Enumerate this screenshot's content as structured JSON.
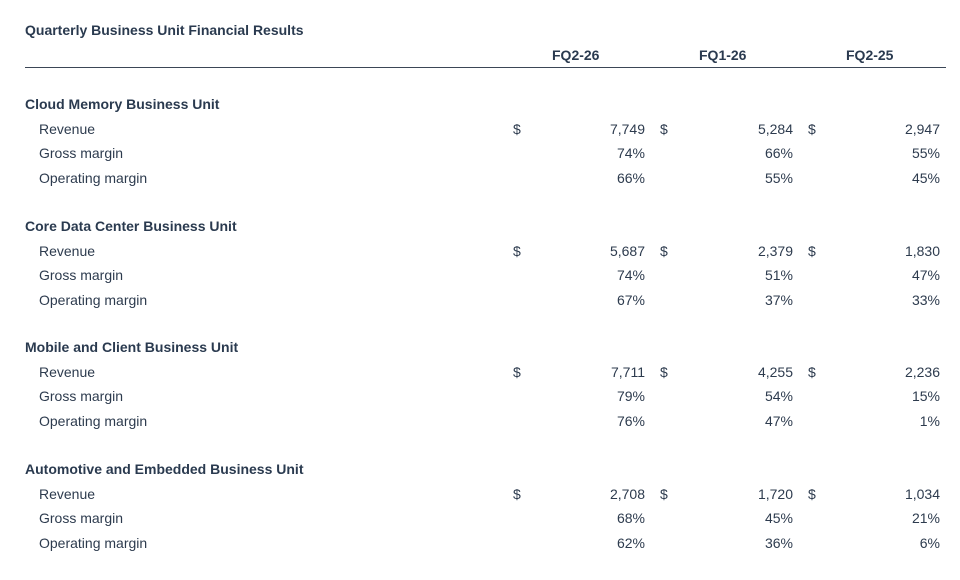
{
  "title": "Quarterly Business Unit Financial Results",
  "columns": [
    "FQ2-26",
    "FQ1-26",
    "FQ2-25"
  ],
  "sections": [
    {
      "name": "Cloud Memory Business Unit",
      "rows": [
        {
          "label": "Revenue",
          "currency": "$",
          "values": [
            "7,749",
            "5,284",
            "2,947"
          ]
        },
        {
          "label": "Gross margin",
          "values": [
            "74%",
            "66%",
            "55%"
          ]
        },
        {
          "label": "Operating margin",
          "values": [
            "66%",
            "55%",
            "45%"
          ]
        }
      ]
    },
    {
      "name": "Core Data Center Business Unit",
      "rows": [
        {
          "label": "Revenue",
          "currency": "$",
          "values": [
            "5,687",
            "2,379",
            "1,830"
          ]
        },
        {
          "label": "Gross margin",
          "values": [
            "74%",
            "51%",
            "47%"
          ]
        },
        {
          "label": "Operating margin",
          "values": [
            "67%",
            "37%",
            "33%"
          ]
        }
      ]
    },
    {
      "name": "Mobile and Client Business Unit",
      "rows": [
        {
          "label": "Revenue",
          "currency": "$",
          "values": [
            "7,711",
            "4,255",
            "2,236"
          ]
        },
        {
          "label": "Gross margin",
          "values": [
            "79%",
            "54%",
            "15%"
          ]
        },
        {
          "label": "Operating margin",
          "values": [
            "76%",
            "47%",
            "1%"
          ]
        }
      ]
    },
    {
      "name": "Automotive and Embedded Business Unit",
      "rows": [
        {
          "label": "Revenue",
          "currency": "$",
          "values": [
            "2,708",
            "1,720",
            "1,034"
          ]
        },
        {
          "label": "Gross margin",
          "values": [
            "68%",
            "45%",
            "21%"
          ]
        },
        {
          "label": "Operating margin",
          "values": [
            "62%",
            "36%",
            "6%"
          ]
        }
      ]
    }
  ]
}
